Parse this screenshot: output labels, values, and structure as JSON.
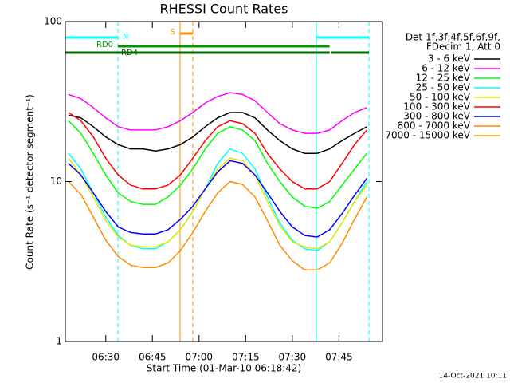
{
  "chart_data": {
    "type": "line",
    "title": "RHESSI Count Rates",
    "x_label": "Start Time (01-Mar-10 06:18:42)",
    "y_label": "Count Rate (s⁻¹ detector segment⁻¹)",
    "timestamp": "14-Oct-2021 10:11",
    "legend_header": [
      "Det 1f,3f,4f,5f,6f,9f,",
      "FDecim 1, Att 0"
    ],
    "log_y": true,
    "xlim": [
      "06:17",
      "07:59"
    ],
    "xticks": [
      "06:30",
      "06:45",
      "07:00",
      "07:15",
      "07:30",
      "07:45"
    ],
    "ylim": [
      1,
      100
    ],
    "yticks": [
      1,
      10,
      100
    ],
    "x": [
      "06:18",
      "06:22",
      "06:26",
      "06:30",
      "06:34",
      "06:38",
      "06:42",
      "06:46",
      "06:50",
      "06:54",
      "06:58",
      "07:02",
      "07:06",
      "07:10",
      "07:14",
      "07:18",
      "07:22",
      "07:26",
      "07:30",
      "07:34",
      "07:38",
      "07:42",
      "07:46",
      "07:50",
      "07:54"
    ],
    "series": [
      {
        "name": "6 - 12 keV",
        "color": "#ff00ff",
        "values": [
          35,
          33,
          29,
          25,
          22,
          21,
          21,
          21,
          22,
          24,
          27,
          31,
          34,
          36,
          35,
          32,
          27,
          23,
          21,
          20,
          20,
          21,
          24,
          27,
          29
        ]
      },
      {
        "name": "3 - 6 keV",
        "color": "#000000",
        "values": [
          26,
          25,
          22,
          19,
          17,
          16,
          16,
          15.5,
          16,
          17,
          19,
          22,
          25,
          27,
          27,
          25,
          21,
          18,
          16,
          15,
          15,
          16,
          18,
          20,
          22
        ]
      },
      {
        "name": "100 - 300 keV",
        "color": "#ff0000",
        "values": [
          27,
          24,
          19,
          14,
          11,
          9.5,
          9,
          9,
          9.5,
          11,
          14,
          18,
          22,
          24,
          23,
          20,
          15,
          12,
          10,
          9,
          9,
          10,
          13,
          17,
          21
        ]
      },
      {
        "name": "12 - 25 keV",
        "color": "#00ff00",
        "values": [
          24,
          20,
          15,
          11,
          8.5,
          7.5,
          7.2,
          7.2,
          8,
          9.5,
          12,
          16,
          20,
          22,
          21,
          18,
          13,
          10,
          8,
          7,
          6.8,
          7.5,
          9.5,
          12,
          15
        ]
      },
      {
        "name": "25 - 50 keV",
        "color": "#00ffff",
        "values": [
          15,
          12,
          8.5,
          6,
          4.6,
          4,
          3.8,
          3.8,
          4.2,
          5,
          6.5,
          9,
          13,
          16,
          15,
          12,
          8,
          5.5,
          4.3,
          3.8,
          3.7,
          4.2,
          5.5,
          7.5,
          10
        ]
      },
      {
        "name": "50 - 100 keV",
        "color": "#e6e600",
        "values": [
          14,
          11,
          8,
          5.7,
          4.5,
          4,
          3.9,
          3.9,
          4.2,
          5,
          6.5,
          9,
          12,
          14,
          13.5,
          11,
          7.5,
          5.3,
          4.2,
          3.9,
          3.8,
          4.2,
          5.5,
          7.5,
          9.5
        ]
      },
      {
        "name": "300 - 800 keV",
        "color": "#0000ff",
        "values": [
          13,
          11,
          8.5,
          6.5,
          5.2,
          4.8,
          4.7,
          4.7,
          5,
          5.8,
          7,
          9,
          11.5,
          13.5,
          13,
          11,
          8.5,
          6.5,
          5.2,
          4.6,
          4.5,
          5,
          6.3,
          8.2,
          10.5
        ]
      },
      {
        "name": "800 - 7000 keV",
        "color": "#ff8c00",
        "values": [
          10,
          8.3,
          6,
          4.3,
          3.4,
          3,
          2.9,
          2.9,
          3.1,
          3.7,
          4.8,
          6.5,
          8.5,
          10,
          9.6,
          8,
          5.7,
          4,
          3.2,
          2.8,
          2.8,
          3.1,
          4.1,
          5.8,
          8
        ]
      },
      {
        "name": "7000 - 15000 keV",
        "color": "#ffa500",
        "values": [
          null,
          null,
          null,
          null,
          null,
          null,
          null,
          null,
          null,
          null,
          null,
          null,
          null,
          null,
          null,
          null,
          null,
          null,
          null,
          null,
          null,
          null,
          null,
          null,
          null
        ]
      }
    ],
    "legend_order": [
      1,
      0,
      3,
      4,
      5,
      2,
      6,
      7,
      8
    ],
    "vlines": [
      {
        "x": "06:17",
        "color": "#00ffff",
        "dash": false
      },
      {
        "x": "06:33:55",
        "color": "#00ffff",
        "dash": true
      },
      {
        "x": "06:53:54",
        "color": "#ff8c00",
        "dash": false
      },
      {
        "x": "06:58:00",
        "color": "#ff8c00",
        "dash": true
      },
      {
        "x": "07:37:44",
        "color": "#00ffff",
        "dash": false
      },
      {
        "x": "07:54:38",
        "color": "#00ffff",
        "dash": true
      }
    ],
    "bars": [
      {
        "label": "N",
        "color": "#00ffff",
        "spans": [
          [
            "06:17",
            "06:33:55"
          ],
          [
            "07:37:44",
            "07:54:38"
          ]
        ]
      },
      {
        "label": "RD0",
        "color": "#009900",
        "spans": [
          [
            "06:33:55",
            "07:42"
          ]
        ]
      },
      {
        "label": "RD4",
        "color": "#006400",
        "spans": [
          [
            "06:17",
            "07:42"
          ],
          [
            "07:42:30",
            "07:54:38"
          ]
        ]
      },
      {
        "label": "S",
        "color": "#ff8c00",
        "spans": [
          [
            "06:53:54",
            "06:58:00"
          ]
        ]
      }
    ]
  }
}
